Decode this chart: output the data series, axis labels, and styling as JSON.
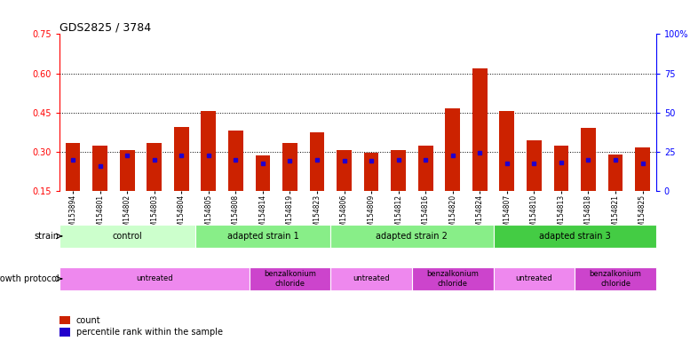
{
  "title": "GDS2825 / 3784",
  "samples": [
    "GSM153894",
    "GSM154801",
    "GSM154802",
    "GSM154803",
    "GSM154804",
    "GSM154805",
    "GSM154808",
    "GSM154814",
    "GSM154819",
    "GSM154823",
    "GSM154806",
    "GSM154809",
    "GSM154812",
    "GSM154816",
    "GSM154820",
    "GSM154824",
    "GSM154807",
    "GSM154810",
    "GSM154813",
    "GSM154818",
    "GSM154821",
    "GSM154825"
  ],
  "count_values": [
    0.335,
    0.325,
    0.308,
    0.335,
    0.395,
    0.455,
    0.38,
    0.285,
    0.335,
    0.375,
    0.305,
    0.295,
    0.305,
    0.325,
    0.465,
    0.62,
    0.455,
    0.345,
    0.325,
    0.39,
    0.29,
    0.315
  ],
  "percentile_values": [
    0.27,
    0.245,
    0.285,
    0.27,
    0.285,
    0.285,
    0.27,
    0.255,
    0.265,
    0.27,
    0.265,
    0.265,
    0.27,
    0.27,
    0.285,
    0.295,
    0.255,
    0.255,
    0.26,
    0.27,
    0.27,
    0.255
  ],
  "bar_color": "#cc2200",
  "dot_color": "#2200cc",
  "ylim_left": [
    0.15,
    0.75
  ],
  "ylim_right": [
    0,
    100
  ],
  "yticks_left": [
    0.15,
    0.3,
    0.45,
    0.6,
    0.75
  ],
  "yticks_right": [
    0,
    25,
    50,
    75,
    100
  ],
  "hlines": [
    0.3,
    0.45,
    0.6
  ],
  "strain_groups": [
    {
      "label": "control",
      "start": 0,
      "end": 4,
      "color": "#ccffcc"
    },
    {
      "label": "adapted strain 1",
      "start": 5,
      "end": 9,
      "color": "#88ee88"
    },
    {
      "label": "adapted strain 2",
      "start": 10,
      "end": 15,
      "color": "#88ee88"
    },
    {
      "label": "adapted strain 3",
      "start": 16,
      "end": 21,
      "color": "#44cc44"
    }
  ],
  "growth_groups": [
    {
      "label": "untreated",
      "start": 0,
      "end": 6,
      "color": "#ee88ee"
    },
    {
      "label": "benzalkonium\nchloride",
      "start": 7,
      "end": 9,
      "color": "#cc44cc"
    },
    {
      "label": "untreated",
      "start": 10,
      "end": 12,
      "color": "#ee88ee"
    },
    {
      "label": "benzalkonium\nchloride",
      "start": 13,
      "end": 15,
      "color": "#cc44cc"
    },
    {
      "label": "untreated",
      "start": 16,
      "end": 18,
      "color": "#ee88ee"
    },
    {
      "label": "benzalkonium\nchloride",
      "start": 19,
      "end": 21,
      "color": "#cc44cc"
    }
  ]
}
